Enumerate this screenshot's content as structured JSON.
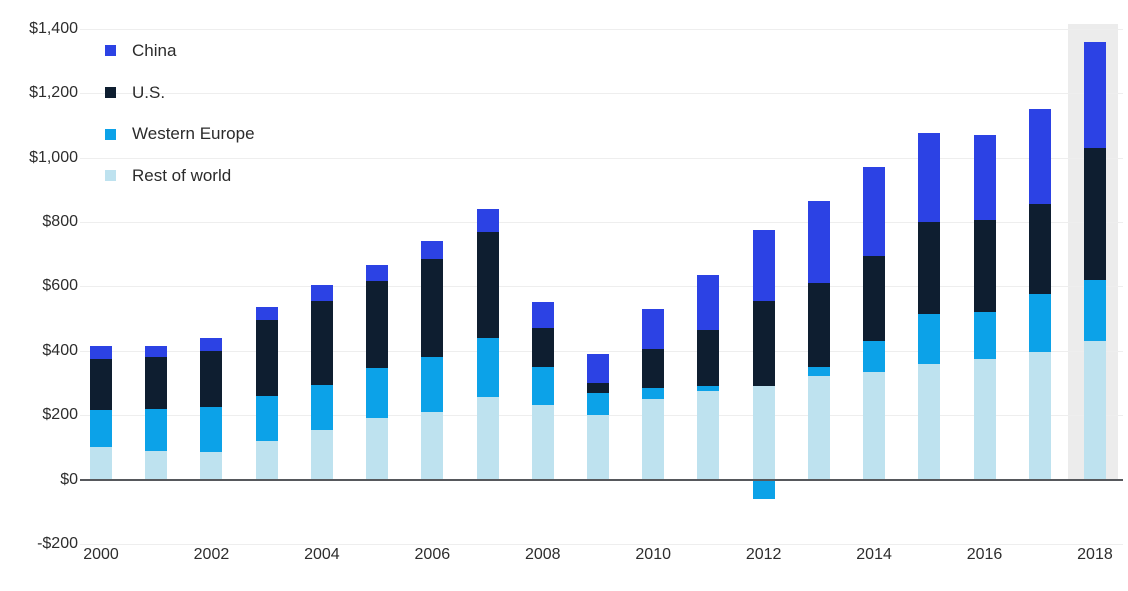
{
  "chart_data": {
    "type": "bar",
    "subtype": "stacked",
    "title": "",
    "currency_prefix": "$",
    "x": [
      2000,
      2001,
      2002,
      2003,
      2004,
      2005,
      2006,
      2007,
      2008,
      2009,
      2010,
      2011,
      2012,
      2013,
      2014,
      2015,
      2016,
      2017,
      2018
    ],
    "x_tick_labels": [
      "2000",
      "2002",
      "2004",
      "2006",
      "2008",
      "2010",
      "2012",
      "2014",
      "2016",
      "2018"
    ],
    "series": [
      {
        "name": "China",
        "color": "#2c42e4",
        "values": [
          40,
          35,
          40,
          40,
          50,
          50,
          55,
          70,
          80,
          90,
          125,
          170,
          220,
          255,
          275,
          275,
          265,
          295,
          330
        ]
      },
      {
        "name": "U.S.",
        "color": "#0e1e30",
        "values": [
          160,
          160,
          175,
          235,
          260,
          270,
          305,
          330,
          120,
          30,
          120,
          175,
          265,
          260,
          265,
          285,
          285,
          280,
          410
        ]
      },
      {
        "name": "Western Europe",
        "color": "#0ca2e8",
        "values": [
          115,
          130,
          140,
          140,
          140,
          155,
          170,
          185,
          120,
          70,
          35,
          15,
          -60,
          30,
          95,
          155,
          145,
          180,
          190
        ]
      },
      {
        "name": "Rest of world",
        "color": "#bee2ef",
        "values": [
          100,
          90,
          85,
          120,
          155,
          190,
          210,
          255,
          230,
          200,
          250,
          275,
          290,
          320,
          335,
          360,
          375,
          395,
          430
        ]
      }
    ],
    "stack_order_bottom_to_top": [
      "Rest of world",
      "Western Europe",
      "U.S.",
      "China"
    ],
    "y_axis": {
      "min": -200,
      "max": 1400,
      "ticks": [
        {
          "value": 1400,
          "label": "$1,400"
        },
        {
          "value": 1200,
          "label": "$1,200"
        },
        {
          "value": 1000,
          "label": "$1,000"
        },
        {
          "value": 800,
          "label": "$800"
        },
        {
          "value": 600,
          "label": "$600"
        },
        {
          "value": 400,
          "label": "$400"
        },
        {
          "value": 200,
          "label": "$200"
        },
        {
          "value": 0,
          "label": "$0"
        },
        {
          "value": -200,
          "label": "-$200"
        }
      ],
      "grid": true
    },
    "legend_position": "top-left",
    "highlight": {
      "year": 2018,
      "color": "#ececec"
    }
  }
}
